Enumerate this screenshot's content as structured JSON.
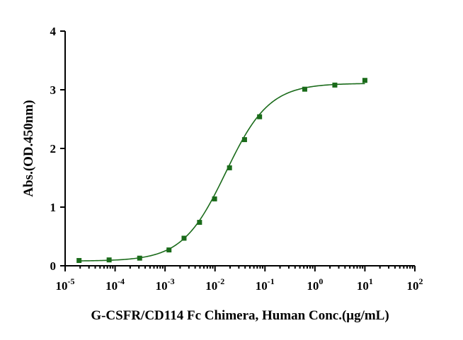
{
  "chart_data": {
    "type": "scatter",
    "xscale": "log",
    "xlim": [
      1e-05,
      100
    ],
    "ylim": [
      0,
      4
    ],
    "x_ticks": [
      {
        "base": "10",
        "exp": "-5",
        "value": 1e-05
      },
      {
        "base": "10",
        "exp": "-4",
        "value": 0.0001
      },
      {
        "base": "10",
        "exp": "-3",
        "value": 0.001
      },
      {
        "base": "10",
        "exp": "-2",
        "value": 0.01
      },
      {
        "base": "10",
        "exp": "-1",
        "value": 0.1
      },
      {
        "base": "10",
        "exp": "0",
        "value": 1
      },
      {
        "base": "10",
        "exp": "1",
        "value": 10
      },
      {
        "base": "10",
        "exp": "2",
        "value": 100
      }
    ],
    "y_ticks": [
      "0",
      "1",
      "2",
      "3",
      "4"
    ],
    "xlabel": "G-CSFR/CD114 Fc Chimera, Human Conc.(μg/mL)",
    "ylabel": "Abs.(OD.450nm)",
    "series": [
      {
        "color": "#1a6b1a",
        "marker": "square",
        "points": [
          {
            "x": 1.9e-05,
            "y": 0.09
          },
          {
            "x": 7.6e-05,
            "y": 0.1
          },
          {
            "x": 0.00031,
            "y": 0.13
          },
          {
            "x": 0.0012,
            "y": 0.27
          },
          {
            "x": 0.0024,
            "y": 0.47
          },
          {
            "x": 0.0049,
            "y": 0.74
          },
          {
            "x": 0.0098,
            "y": 1.14
          },
          {
            "x": 0.0195,
            "y": 1.67
          },
          {
            "x": 0.039,
            "y": 2.15
          },
          {
            "x": 0.078,
            "y": 2.54
          },
          {
            "x": 0.625,
            "y": 3.01
          },
          {
            "x": 2.5,
            "y": 3.08
          },
          {
            "x": 10,
            "y": 3.16
          }
        ],
        "fit": {
          "bottom": 0.08,
          "top": 3.11,
          "ec50": 0.0165,
          "hill": 1.0
        }
      }
    ]
  }
}
